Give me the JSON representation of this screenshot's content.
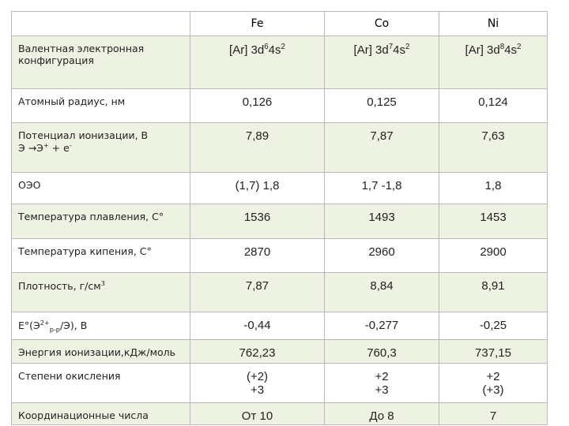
{
  "table": {
    "header": [
      "Fe",
      "Co",
      "Ni"
    ],
    "rows": [
      {
        "label": "Валентная электронная конфигурация",
        "cells": [
          [
            [
              "[Ar] 3d",
              {
                "sup": "6"
              },
              "4s",
              {
                "sup": "2"
              }
            ]
          ],
          [
            [
              "[Ar] 3d",
              {
                "sup": "7"
              },
              "4s",
              {
                "sup": "2"
              }
            ]
          ],
          [
            [
              "[Ar] 3d",
              {
                "sup": "8"
              },
              "4s",
              {
                "sup": "2"
              }
            ]
          ]
        ]
      },
      {
        "label": "Атомный радиус, нм",
        "cells": [
          "0,126",
          "0,125",
          "0,124"
        ]
      },
      {
        "label": [
          [
            "Потенциал ионизации, В"
          ],
          [
            "Э →Э",
            {
              "sup": "+"
            },
            " + e",
            {
              "sup": "-"
            }
          ]
        ],
        "cells": [
          "7,89",
          "7,87",
          "7,63"
        ]
      },
      {
        "label": "ОЭО",
        "cells": [
          "(1,7) 1,8",
          "1,7 -1,8",
          "1,8"
        ]
      },
      {
        "label": "Температура плавления, С°",
        "cells": [
          "1536",
          "1493",
          "1453"
        ]
      },
      {
        "label": "Температура кипения, С°",
        "cells": [
          "2870",
          "2960",
          "2900"
        ]
      },
      {
        "label": [
          [
            "Плотность, г/см",
            {
              "sup": "3"
            }
          ]
        ],
        "cells": [
          "7,87",
          "8,84",
          "8,91"
        ]
      },
      {
        "label": [
          [
            "E°(Э",
            {
              "sup": "2+"
            },
            {
              "sub": "р-р"
            },
            "/Э), В"
          ]
        ],
        "cells": [
          "-0,44",
          "-0,277",
          "-0,25"
        ]
      },
      {
        "label": "Энергия ионизации,кДж/моль",
        "cells": [
          "762,23",
          "760,3",
          "737,15"
        ]
      },
      {
        "label": "Степени окисления",
        "cells": [
          [
            [
              "(+2)"
            ],
            [
              "+3"
            ]
          ],
          [
            [
              "+2"
            ],
            [
              "+3"
            ]
          ],
          [
            [
              "+2"
            ],
            [
              "(+3)"
            ]
          ]
        ]
      },
      {
        "label": "Координационные числа",
        "cells": [
          "От 10",
          "До 8",
          "7"
        ]
      }
    ]
  }
}
